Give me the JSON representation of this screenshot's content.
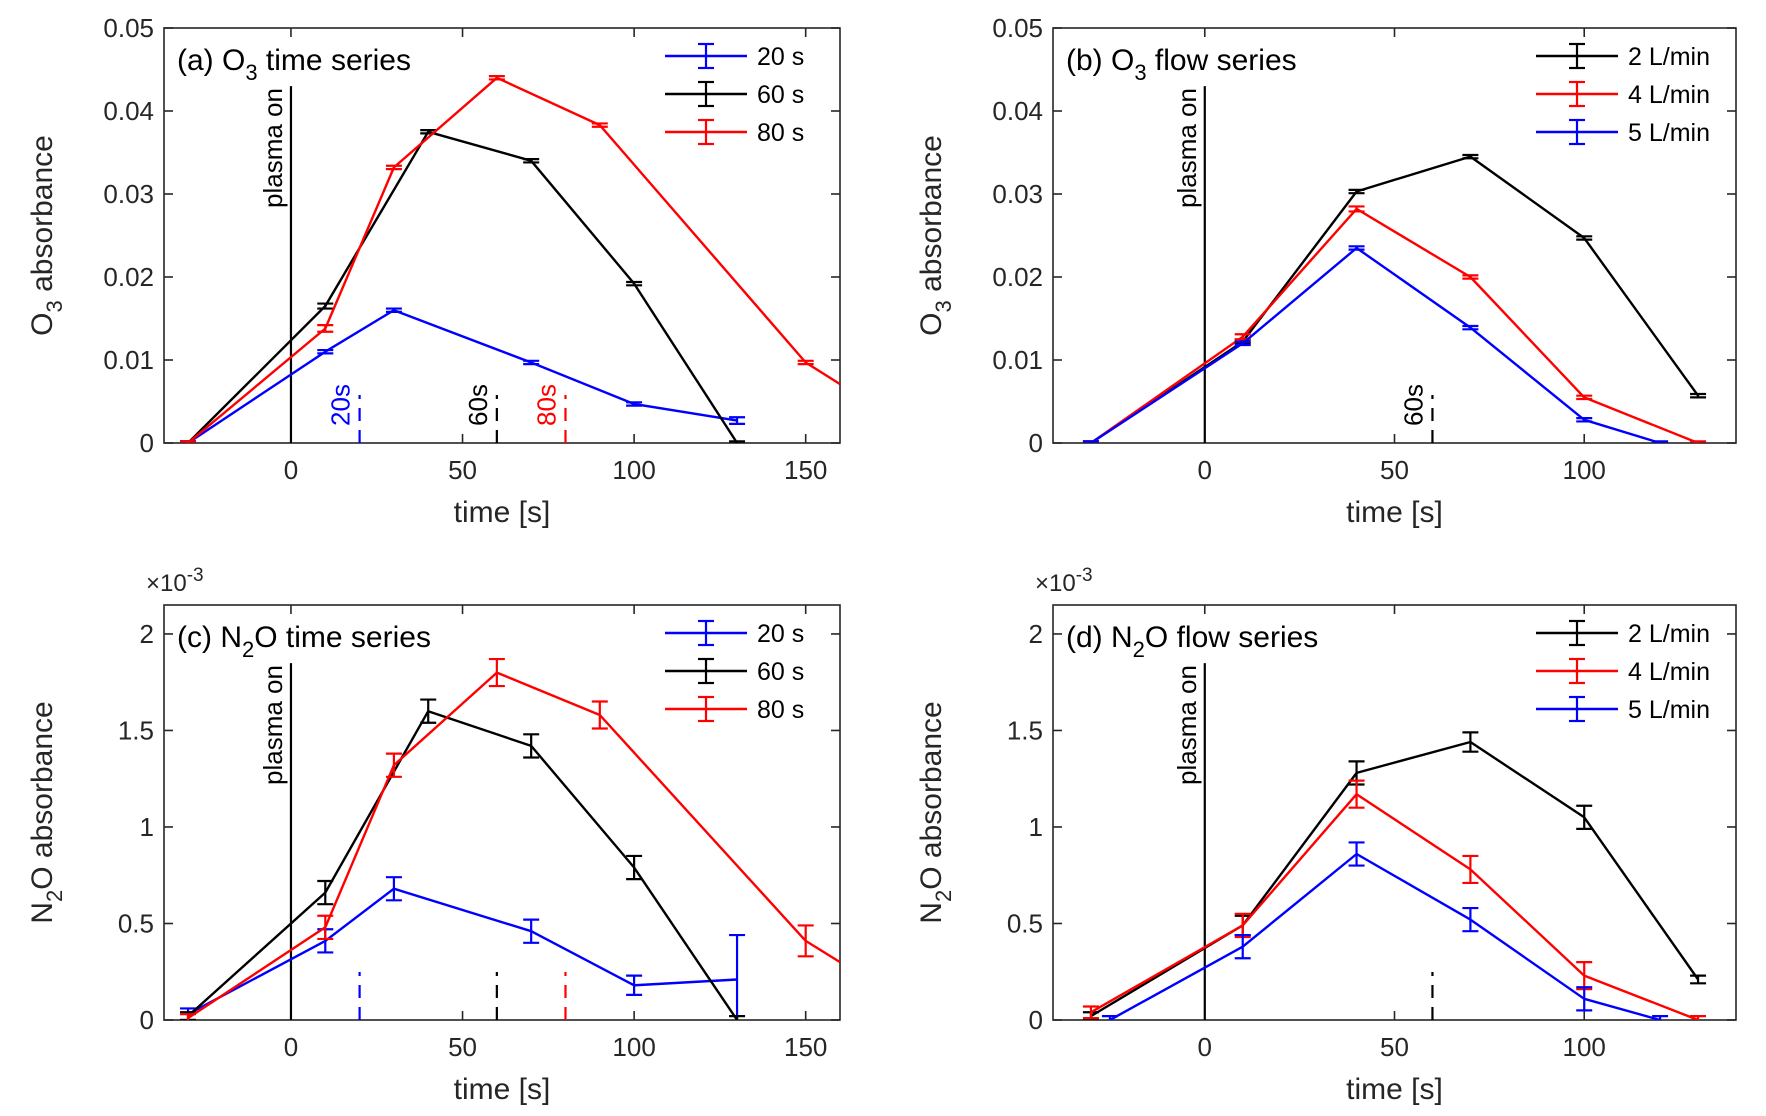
{
  "chart_data": [
    {
      "panel": "a",
      "type": "line",
      "title": "(a) O",
      "title_sub": "3",
      "title_tail": " time series",
      "ylabel": "O",
      "ylabel_sub": "3",
      "ylabel_tail": "  absorbance",
      "xlabel": "time [s]",
      "exponent": "",
      "xlim": [
        -37,
        160
      ],
      "ylim": [
        0,
        0.05
      ],
      "xticks": [
        0,
        50,
        100,
        150
      ],
      "yticks": [
        0,
        0.01,
        0.02,
        0.03,
        0.04,
        0.05
      ],
      "ytick_labels": [
        "0",
        "0.01",
        "0.02",
        "0.03",
        "0.04",
        "0.05"
      ],
      "legend_position": "top-right",
      "plasma_label": "plasma on",
      "plasma_x": 0,
      "markers": [
        {
          "x": 20,
          "label": "20s",
          "color": "#0000ff"
        },
        {
          "x": 60,
          "label": "60s",
          "color": "#000000"
        },
        {
          "x": 80,
          "label": "80s",
          "color": "#ff0000"
        }
      ],
      "series": [
        {
          "name": "20 s",
          "color": "#0000ff",
          "x": [
            -30,
            10,
            30,
            70,
            100,
            130
          ],
          "y": [
            0,
            0.011,
            0.016,
            0.0097,
            0.0047,
            0.0027
          ],
          "err": [
            0.0002,
            0.0002,
            0.0002,
            0.0002,
            0.0002,
            0.0004
          ]
        },
        {
          "name": "60 s",
          "color": "#000000",
          "x": [
            -30,
            10,
            40,
            70,
            100,
            130
          ],
          "y": [
            0,
            0.0165,
            0.0375,
            0.034,
            0.0192,
            0
          ],
          "err": [
            0.0002,
            0.0003,
            0.0002,
            0.0002,
            0.0002,
            0.0002
          ]
        },
        {
          "name": "80 s",
          "color": "#ff0000",
          "x": [
            -30,
            10,
            30,
            60,
            90,
            150,
            160
          ],
          "y": [
            0,
            0.0138,
            0.0332,
            0.044,
            0.0383,
            0.0097,
            0.0071
          ],
          "err": [
            0.0002,
            0.0004,
            0.0002,
            0.0002,
            0.0002,
            0.0002,
            0
          ]
        }
      ]
    },
    {
      "panel": "b",
      "type": "line",
      "title": "(b) O",
      "title_sub": "3",
      "title_tail": " flow series",
      "ylabel": "O",
      "ylabel_sub": "3",
      "ylabel_tail": "  absorbance",
      "xlabel": "time [s]",
      "exponent": "",
      "xlim": [
        -40,
        140
      ],
      "ylim": [
        0,
        0.05
      ],
      "xticks": [
        0,
        50,
        100
      ],
      "yticks": [
        0,
        0.01,
        0.02,
        0.03,
        0.04,
        0.05
      ],
      "ytick_labels": [
        "0",
        "0.01",
        "0.02",
        "0.03",
        "0.04",
        "0.05"
      ],
      "legend_position": "top-right",
      "plasma_label": "plasma on",
      "plasma_x": 0,
      "markers": [
        {
          "x": 60,
          "label": "60s",
          "color": "#000000"
        }
      ],
      "series": [
        {
          "name": "2 L/min",
          "color": "#000000",
          "x": [
            -30,
            10,
            40,
            70,
            100,
            130
          ],
          "y": [
            0,
            0.0122,
            0.0303,
            0.0345,
            0.0247,
            0.0057
          ],
          "err": [
            0.0002,
            0.0002,
            0.0002,
            0.0002,
            0.0002,
            0.0002
          ]
        },
        {
          "name": "4 L/min",
          "color": "#ff0000",
          "x": [
            -30,
            10,
            40,
            70,
            100,
            130
          ],
          "y": [
            0,
            0.0128,
            0.0282,
            0.02,
            0.0055,
            0
          ],
          "err": [
            0.0002,
            0.0003,
            0.0003,
            0.0002,
            0.0002,
            0.0002
          ]
        },
        {
          "name": "5 L/min",
          "color": "#0000ff",
          "x": [
            -30,
            10,
            40,
            70,
            100,
            120
          ],
          "y": [
            0,
            0.012,
            0.0235,
            0.0139,
            0.0028,
            0
          ],
          "err": [
            0.0002,
            0.0002,
            0.0002,
            0.0002,
            0.0002,
            0.0002
          ]
        }
      ]
    },
    {
      "panel": "c",
      "type": "line",
      "title": "(c) N",
      "title_sub": "2",
      "title_tail": "O time series",
      "ylabel": "N",
      "ylabel_sub": "2",
      "ylabel_tail": "O  absorbance",
      "xlabel": "time [s]",
      "exponent": "×10",
      "exponent_power": "-3",
      "xlim": [
        -37,
        160
      ],
      "ylim": [
        0,
        2.15
      ],
      "xticks": [
        0,
        50,
        100,
        150
      ],
      "yticks": [
        0,
        0.5,
        1,
        1.5,
        2
      ],
      "ytick_labels": [
        "0",
        "0.5",
        "1",
        "1.5",
        "2"
      ],
      "legend_position": "top-right",
      "plasma_label": "plasma on",
      "plasma_x": 0,
      "markers": [
        {
          "x": 20,
          "label": "",
          "color": "#0000ff"
        },
        {
          "x": 60,
          "label": "",
          "color": "#000000"
        },
        {
          "x": 80,
          "label": "",
          "color": "#ff0000"
        }
      ],
      "series": [
        {
          "name": "20 s",
          "color": "#0000ff",
          "x": [
            -30,
            10,
            30,
            70,
            100,
            130
          ],
          "y": [
            0.03,
            0.41,
            0.68,
            0.46,
            0.18,
            0.21
          ],
          "err": [
            0.03,
            0.06,
            0.06,
            0.06,
            0.05,
            0.23
          ]
        },
        {
          "name": "60 s",
          "color": "#000000",
          "x": [
            -30,
            10,
            40,
            70,
            100,
            130
          ],
          "y": [
            0.02,
            0.66,
            1.6,
            1.42,
            0.79,
            0
          ],
          "err": [
            0.02,
            0.06,
            0.06,
            0.06,
            0.06,
            0.02
          ]
        },
        {
          "name": "80 s",
          "color": "#ff0000",
          "x": [
            -30,
            10,
            30,
            60,
            90,
            150,
            160
          ],
          "y": [
            0.01,
            0.48,
            1.32,
            1.8,
            1.58,
            0.41,
            0.3
          ],
          "err": [
            0.02,
            0.06,
            0.06,
            0.07,
            0.07,
            0.08,
            0
          ]
        }
      ]
    },
    {
      "panel": "d",
      "type": "line",
      "title": "(d) N",
      "title_sub": "2",
      "title_tail": "O flow series",
      "ylabel": "N",
      "ylabel_sub": "2",
      "ylabel_tail": "O  absorbance",
      "xlabel": "time [s]",
      "exponent": "×10",
      "exponent_power": "-3",
      "xlim": [
        -40,
        140
      ],
      "ylim": [
        0,
        2.15
      ],
      "xticks": [
        0,
        50,
        100
      ],
      "yticks": [
        0,
        0.5,
        1,
        1.5,
        2
      ],
      "ytick_labels": [
        "0",
        "0.5",
        "1",
        "1.5",
        "2"
      ],
      "legend_position": "top-right",
      "plasma_label": "plasma on",
      "plasma_x": 0,
      "markers": [
        {
          "x": 60,
          "label": "",
          "color": "#000000"
        }
      ],
      "series": [
        {
          "name": "2 L/min",
          "color": "#000000",
          "x": [
            -30,
            10,
            40,
            70,
            100,
            130
          ],
          "y": [
            0.02,
            0.49,
            1.28,
            1.44,
            1.05,
            0.21
          ],
          "err": [
            0.02,
            0.05,
            0.06,
            0.05,
            0.06,
            0.02
          ]
        },
        {
          "name": "4 L/min",
          "color": "#ff0000",
          "x": [
            -30,
            10,
            40,
            70,
            100,
            130
          ],
          "y": [
            0.04,
            0.49,
            1.17,
            0.78,
            0.23,
            0
          ],
          "err": [
            0.03,
            0.06,
            0.07,
            0.07,
            0.07,
            0.02
          ]
        },
        {
          "name": "5 L/min",
          "color": "#0000ff",
          "x": [
            -25,
            10,
            40,
            70,
            100,
            120
          ],
          "y": [
            0,
            0.38,
            0.86,
            0.52,
            0.11,
            0
          ],
          "err": [
            0.02,
            0.06,
            0.06,
            0.06,
            0.06,
            0.02
          ]
        }
      ]
    }
  ]
}
